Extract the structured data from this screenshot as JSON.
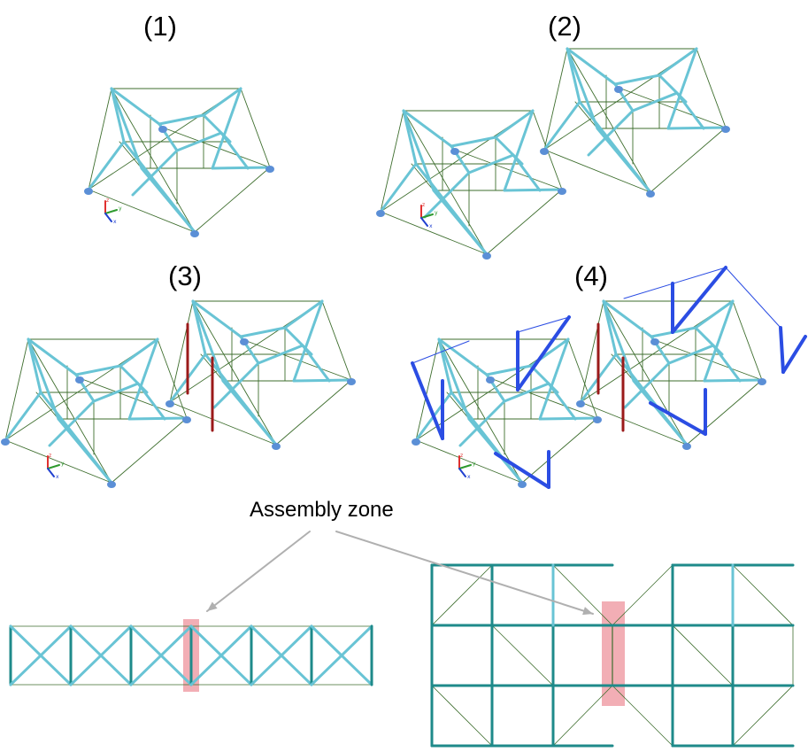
{
  "panels": [
    {
      "id": "p1",
      "label": "(1)"
    },
    {
      "id": "p2",
      "label": "(2)"
    },
    {
      "id": "p3",
      "label": "(3)"
    },
    {
      "id": "p4",
      "label": "(4)"
    }
  ],
  "assembly_label": "Assembly zone",
  "axis_letters": {
    "z": "z",
    "y": "y",
    "x": "x"
  },
  "colors": {
    "member": "#69c4d5",
    "thin_member": "#3e6e2e",
    "support": "#5b8fd6",
    "tie_red": "#9b1a1a",
    "blue_member": "#2b4de3",
    "plan_member": "#1e8a8a",
    "zone_fill": "#f0a0a8",
    "arrow": "#b0b0b0",
    "axis_z": "#e0302f",
    "axis_y": "#2e9a2e",
    "axis_x": "#2040d0"
  }
}
